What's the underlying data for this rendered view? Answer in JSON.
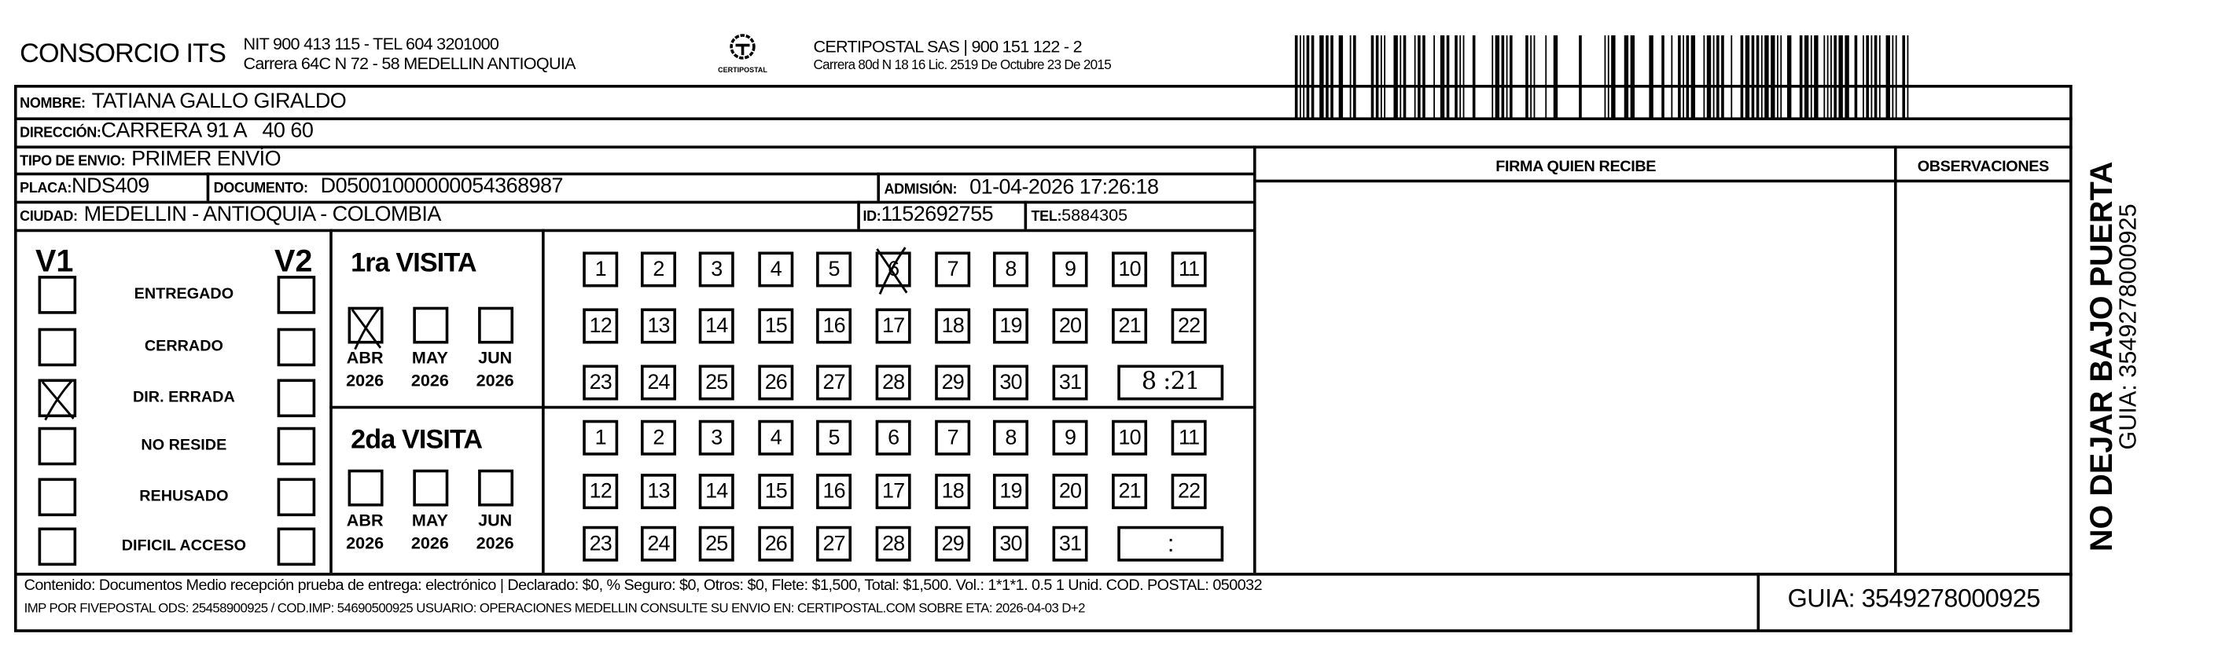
{
  "header": {
    "company": "CONSORCIO ITS",
    "company_line1": "NIT 900 413 115 - TEL 604 3201000",
    "company_line2": "Carrera 64C N 72 - 58 MEDELLIN ANTIOQUIA",
    "logo_text": "CERTIPOSTAL",
    "carrier_line1": "CERTIPOSTAL SAS | 900 151 122 - 2",
    "carrier_line2": "Carrera 80d N 18 16  Lic. 2519 De Octubre 23 De 2015",
    "barcode_icon": "barcode"
  },
  "recipient": {
    "nombre_label": "NOMBRE:",
    "nombre": "TATIANA GALLO GIRALDO",
    "direccion_label": "DIRECCIÓN:",
    "direccion": "CARRERA 91 A   40 60",
    "tipo_label": "TIPO DE ENVIO:",
    "tipo": "PRIMER ENVÍO",
    "placa_label": "PLACA:",
    "placa": "NDS409",
    "documento_label": "DOCUMENTO:",
    "documento": "D05001000000054368987",
    "admision_label": "ADMISIÓN:",
    "admision": "01-04-2026 17:26:18",
    "ciudad_label": "CIUDAD:",
    "ciudad": "MEDELLIN - ANTIOQUIA - COLOMBIA",
    "id_label": "ID:",
    "id": "1152692755",
    "tel_label": "TEL:",
    "tel": "5884305"
  },
  "columns": {
    "firma": "FIRMA QUIEN RECIBE",
    "observaciones": "OBSERVACIONES"
  },
  "status": {
    "v1_label": "V1",
    "v2_label": "V2",
    "options": [
      {
        "label": "ENTREGADO",
        "v1": false,
        "v2": false
      },
      {
        "label": "CERRADO",
        "v1": false,
        "v2": false
      },
      {
        "label": "DIR. ERRADA",
        "v1": true,
        "v2": false
      },
      {
        "label": "NO RESIDE",
        "v1": false,
        "v2": false
      },
      {
        "label": "REHUSADO",
        "v1": false,
        "v2": false
      },
      {
        "label": "DIFICIL ACCESO",
        "v1": false,
        "v2": false
      }
    ]
  },
  "visits": [
    {
      "title": "1ra VISITA",
      "months": [
        {
          "m": "ABR",
          "y": "2026",
          "checked": true
        },
        {
          "m": "MAY",
          "y": "2026",
          "checked": false
        },
        {
          "m": "JUN",
          "y": "2026",
          "checked": false
        }
      ],
      "marked_day": 6,
      "time": "8 :21"
    },
    {
      "title": "2da VISITA",
      "months": [
        {
          "m": "ABR",
          "y": "2026",
          "checked": false
        },
        {
          "m": "MAY",
          "y": "2026",
          "checked": false
        },
        {
          "m": "JUN",
          "y": "2026",
          "checked": false
        }
      ],
      "marked_day": null,
      "time": ":"
    }
  ],
  "days": [
    "1",
    "2",
    "3",
    "4",
    "5",
    "6",
    "7",
    "8",
    "9",
    "10",
    "11",
    "12",
    "13",
    "14",
    "15",
    "16",
    "17",
    "18",
    "19",
    "20",
    "21",
    "22",
    "23",
    "24",
    "25",
    "26",
    "27",
    "28",
    "29",
    "30",
    "31"
  ],
  "footer": {
    "line1": "Contenido: Documentos Medio recepción prueba de entrega: electrónico | Declarado: $0, % Seguro: $0, Otros: $0, Flete: $1,500, Total: $1,500. Vol.: 1*1*1. 0.5  1 Unid. COD. POSTAL: 050032",
    "line2": "IMP POR FIVEPOSTAL ODS: 25458900925 / COD.IMP: 54690500925 USUARIO: OPERACIONES MEDELLIN CONSULTE SU ENVIO EN: CERTIPOSTAL.COM SOBRE ETA: 2026-04-03 D+2",
    "guia": "GUIA: 3549278000925"
  },
  "side": {
    "warning": "NO DEJAR BAJO PUERTA",
    "guia": "GUIA: 3549278000925"
  }
}
